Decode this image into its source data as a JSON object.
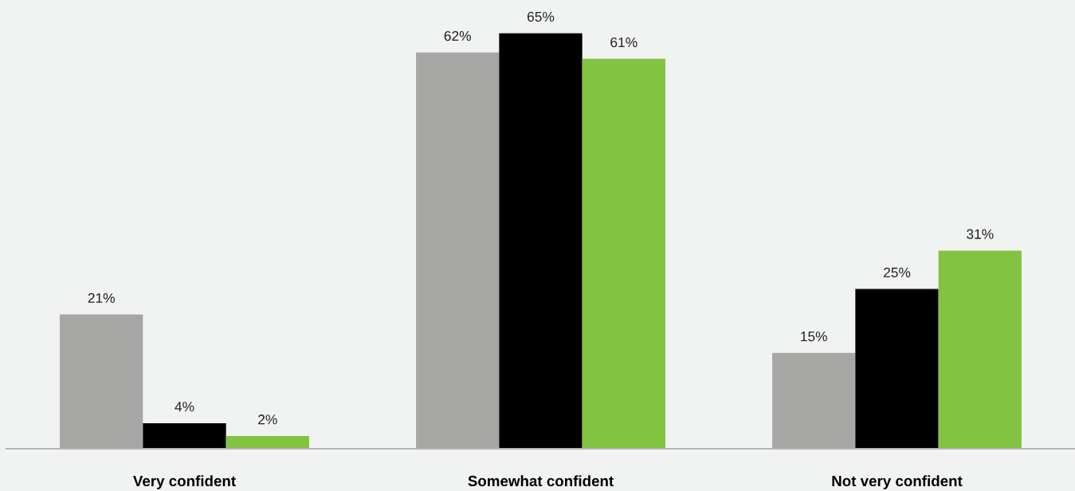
{
  "chart_data": {
    "type": "bar",
    "categories": [
      "Very confident",
      "Somewhat confident",
      "Not very confident"
    ],
    "series": [
      {
        "color": "#a6a6a5",
        "values": [
          21,
          62,
          15
        ],
        "value_labels": [
          "21%",
          "62%",
          "15%"
        ]
      },
      {
        "color": "#000000",
        "values": [
          4,
          65,
          25
        ],
        "value_labels": [
          "4%",
          "65%",
          "25%"
        ]
      },
      {
        "color": "#82c341",
        "values": [
          2,
          61,
          31
        ],
        "value_labels": [
          "2%",
          "61%",
          "31%"
        ]
      }
    ],
    "tick_labels": "x",
    "grid": false
  }
}
